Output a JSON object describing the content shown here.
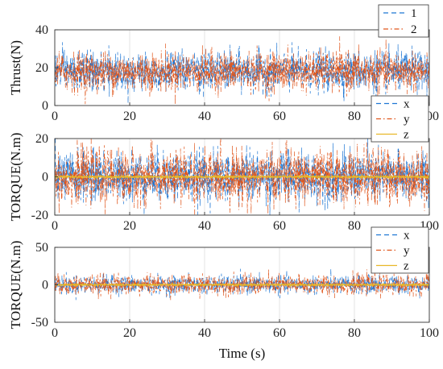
{
  "chart_data": [
    {
      "type": "line",
      "ylabel": "Thrust(N)",
      "xlim": [
        0,
        100
      ],
      "ylim": [
        0,
        40
      ],
      "xticks": [
        0,
        20,
        40,
        60,
        80,
        100
      ],
      "yticks": [
        0,
        20,
        40
      ],
      "grid": true,
      "legend_position": "top-right",
      "series": [
        {
          "name": "1",
          "color": "#1f77d4",
          "style": "dashed",
          "mean": 18,
          "spread": 5.2
        },
        {
          "name": "2",
          "color": "#e0561c",
          "style": "dash-dot",
          "mean": 18,
          "spread": 5.2
        }
      ]
    },
    {
      "type": "line",
      "ylabel": "TORQUE(N.m)",
      "xlim": [
        0,
        100
      ],
      "ylim": [
        -20,
        20
      ],
      "xticks": [
        0,
        20,
        40,
        60,
        80,
        100
      ],
      "yticks": [
        -20,
        0,
        20
      ],
      "grid": true,
      "legend_position": "top-right",
      "series": [
        {
          "name": "x",
          "color": "#1f77d4",
          "style": "dashed",
          "mean": 0,
          "spread": 6.5
        },
        {
          "name": "y",
          "color": "#e0561c",
          "style": "dash-dot",
          "mean": 0,
          "spread": 7.0
        },
        {
          "name": "z",
          "color": "#e8b828",
          "style": "solid",
          "mean": 0,
          "spread": 0.25
        }
      ]
    },
    {
      "type": "line",
      "ylabel": "TORQUE(N.m)",
      "xlabel": "Time (s)",
      "xlim": [
        0,
        100
      ],
      "ylim": [
        -50,
        50
      ],
      "xticks": [
        0,
        20,
        40,
        60,
        80,
        100
      ],
      "yticks": [
        -50,
        0,
        50
      ],
      "grid": true,
      "legend_position": "top-right",
      "series": [
        {
          "name": "x",
          "color": "#1f77d4",
          "style": "dashed",
          "mean": 0,
          "spread": 6.0
        },
        {
          "name": "y",
          "color": "#e0561c",
          "style": "dash-dot",
          "mean": 0,
          "spread": 6.5
        },
        {
          "name": "z",
          "color": "#e8b828",
          "style": "solid",
          "mean": 0,
          "spread": 0.5
        }
      ]
    }
  ]
}
